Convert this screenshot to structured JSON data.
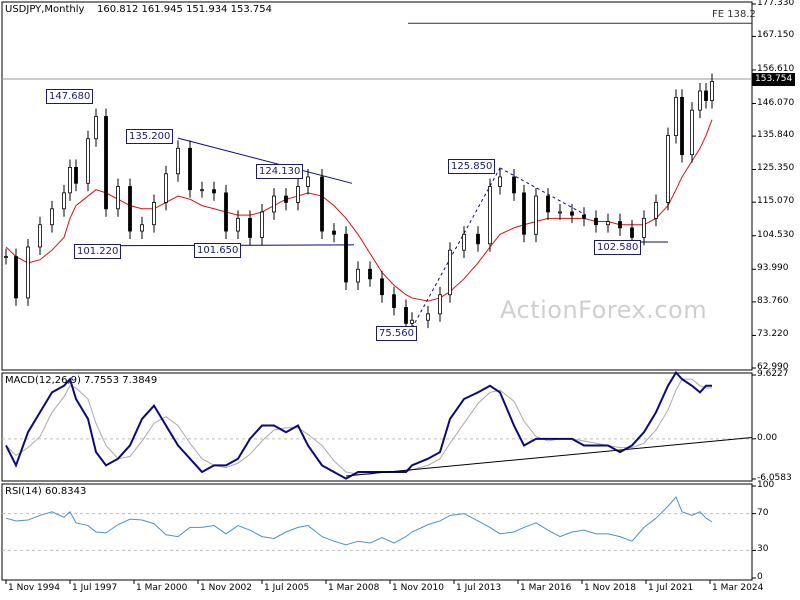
{
  "header": {
    "symbol_info": "USDJPY,Monthly",
    "ohlc": "160.812 161.945 151.934 153.754"
  },
  "watermark": "ActionForex.com",
  "last_price": "153.754",
  "fib_label": "FE 138.2",
  "macd_title": "MACD(12,26,9) 7.7553 7.3849",
  "rsi_title": "RSI(14) 60.8343",
  "price_axis": [
    "177.330",
    "167.150",
    "156.610",
    "146.070",
    "135.840",
    "125.350",
    "115.070",
    "104.530",
    "93.990",
    "83.760",
    "73.220",
    "62.990"
  ],
  "macd_axis": [
    "9.6227",
    "0.00",
    "-6.0583"
  ],
  "rsi_axis": [
    "100",
    "70",
    "30",
    "0"
  ],
  "x_labels": [
    "1 Nov 1994",
    "1 Jul 1997",
    "1 Mar 2000",
    "1 Nov 2002",
    "1 Jul 2005",
    "1 Mar 2008",
    "1 Nov 2010",
    "1 Jul 2013",
    "1 Mar 2016",
    "1 Nov 2018",
    "1 Jul 2021",
    "1 Mar 2024"
  ],
  "annotations": [
    "147.680",
    "135.200",
    "124.130",
    "101.220",
    "101.650",
    "75.560",
    "125.850",
    "102.580"
  ],
  "colors": {
    "candle": "#000000",
    "sma": "#e01010",
    "macd": "#0a0a7a",
    "signal": "#aaaaaa",
    "rsi": "#4a90d0",
    "trendline": "#0a0a7a",
    "grid": "#bdbdbd"
  },
  "chart_data": [
    {
      "type": "candlestick",
      "title": "USDJPY,Monthly",
      "ylim": [
        62.99,
        177.33
      ],
      "x": [
        "1994-11",
        "1995-04",
        "1995-10",
        "1996-04",
        "1996-10",
        "1997-04",
        "1997-07",
        "1997-10",
        "1998-04",
        "1998-08",
        "1999-01",
        "1999-07",
        "2000-01",
        "2000-07",
        "2001-01",
        "2001-07",
        "2002-01",
        "2002-07",
        "2003-01",
        "2003-07",
        "2004-01",
        "2004-07",
        "2005-01",
        "2005-07",
        "2006-01",
        "2006-07",
        "2007-01",
        "2007-06",
        "2008-01",
        "2008-07",
        "2009-01",
        "2009-07",
        "2010-01",
        "2010-07",
        "2011-01",
        "2011-07",
        "2011-10",
        "2012-06",
        "2012-12",
        "2013-05",
        "2013-12",
        "2014-07",
        "2015-01",
        "2015-06",
        "2016-01",
        "2016-06",
        "2016-12",
        "2017-06",
        "2017-12",
        "2018-06",
        "2018-12",
        "2019-06",
        "2019-12",
        "2020-06",
        "2020-12",
        "2021-06",
        "2021-12",
        "2022-06",
        "2022-10",
        "2023-01",
        "2023-06",
        "2023-10",
        "2024-01",
        "2024-04"
      ],
      "close": [
        98,
        85,
        101,
        108,
        113,
        118,
        126,
        121,
        135,
        142,
        113,
        120,
        106,
        108,
        115,
        124,
        132,
        119,
        119,
        118,
        106,
        110,
        104,
        112,
        117,
        115,
        120,
        123,
        106,
        105,
        90,
        94,
        91,
        86,
        82,
        77,
        78,
        80,
        86,
        100,
        105,
        102,
        120,
        123,
        118,
        105,
        117,
        112,
        112,
        111,
        110,
        108,
        109,
        107,
        104,
        110,
        115,
        136,
        148,
        130,
        144,
        150,
        147,
        153
      ],
      "sma_approx": [
        101,
        98,
        96,
        97,
        100,
        104,
        110,
        114,
        117,
        119,
        118,
        116,
        114,
        113,
        113,
        115,
        117,
        116,
        114,
        113,
        112,
        111,
        111,
        112,
        114,
        116,
        117,
        118,
        117,
        114,
        110,
        105,
        99,
        93,
        89,
        86,
        85,
        84,
        85,
        87,
        91,
        96,
        101,
        105,
        107,
        108,
        109,
        110,
        110,
        110,
        110,
        109,
        109,
        108,
        108,
        108,
        110,
        114,
        119,
        123,
        128,
        132,
        136,
        141
      ],
      "annotations": [
        {
          "label": "147.680",
          "date": "1998-08",
          "value": 147.68
        },
        {
          "label": "135.200",
          "date": "2002-01",
          "value": 135.2
        },
        {
          "label": "124.130",
          "date": "2007-06",
          "value": 124.13
        },
        {
          "label": "101.220",
          "date": "1999-11",
          "value": 101.22
        },
        {
          "label": "101.650",
          "date": "2005-01",
          "value": 101.65
        },
        {
          "label": "75.560",
          "date": "2011-10",
          "value": 75.56
        },
        {
          "label": "125.850",
          "date": "2015-06",
          "value": 125.85
        },
        {
          "label": "102.580",
          "date": "2021-01",
          "value": 102.58
        }
      ],
      "reference_lines": [
        {
          "label": "FE 138.2",
          "value": 171.3
        },
        {
          "label": "last",
          "value": 153.754
        }
      ],
      "legend": "none"
    },
    {
      "type": "line",
      "title": "MACD(12,26,9) 7.7553 7.3849",
      "ylim": [
        -6.0583,
        9.6227
      ],
      "series": [
        {
          "values": [
            -1,
            -4,
            1,
            4,
            7,
            8,
            9,
            6,
            3,
            -2,
            -4,
            -3,
            -1,
            3,
            5,
            2,
            -1,
            -3,
            -5,
            -4,
            -4,
            -3,
            0,
            2,
            2,
            1,
            2,
            -1,
            -4,
            -5,
            -6,
            -5,
            -5,
            -5,
            -5,
            -5,
            -4,
            -3,
            -2,
            3,
            6,
            7,
            8,
            7,
            2,
            -1,
            0,
            0,
            0,
            0,
            -1,
            -1,
            -1,
            -2,
            -1,
            1,
            4,
            8,
            10,
            9,
            8,
            7,
            8,
            8
          ]
        }
      ]
    },
    {
      "type": "line",
      "title": "RSI(14) 60.8343",
      "ylim": [
        0,
        100
      ],
      "series": [
        {
          "values": [
            65,
            62,
            63,
            68,
            72,
            66,
            72,
            60,
            57,
            50,
            49,
            58,
            64,
            63,
            59,
            47,
            45,
            55,
            55,
            57,
            48,
            57,
            52,
            45,
            43,
            50,
            55,
            57,
            45,
            40,
            36,
            40,
            38,
            44,
            38,
            45,
            50,
            58,
            62,
            68,
            70,
            62,
            55,
            48,
            50,
            55,
            60,
            52,
            45,
            50,
            52,
            48,
            48,
            45,
            40,
            55,
            65,
            78,
            88,
            72,
            68,
            72,
            65,
            61
          ]
        }
      ]
    }
  ]
}
